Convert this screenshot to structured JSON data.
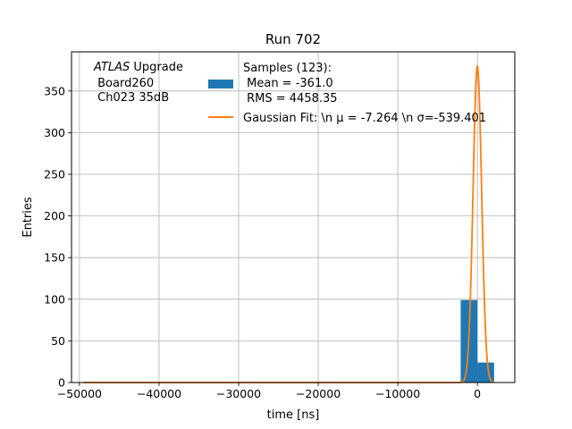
{
  "chart_data": {
    "type": "bar",
    "title": "Run 702",
    "xlabel": "time [ns]",
    "ylabel": "Entries",
    "xlim": [
      -51000,
      4700
    ],
    "ylim": [
      0,
      397
    ],
    "x_ticks": [
      -50000,
      -40000,
      -30000,
      -20000,
      -10000,
      0
    ],
    "x_tick_labels": [
      "−50000",
      "−40000",
      "−30000",
      "−20000",
      "−10000",
      "0"
    ],
    "y_ticks": [
      0,
      50,
      100,
      150,
      200,
      250,
      300,
      350
    ],
    "y_tick_labels": [
      "0",
      "50",
      "100",
      "150",
      "200",
      "250",
      "300",
      "350"
    ],
    "grid": true,
    "legend_position": "top-center",
    "annotation": {
      "italic": "ATLAS",
      "line1_rest": " Upgrade",
      "line2": " Board260",
      "line3": " Ch023 35dB"
    },
    "histogram": {
      "name_lines": [
        "Samples (123):",
        " Mean = -361.0",
        " RMS = 4458.35"
      ],
      "color": "#1f77b4",
      "bins": [
        {
          "x0": -49500,
          "x1": -47400,
          "count": 0
        },
        {
          "x0": -2100,
          "x1": 0,
          "count": 99
        },
        {
          "x0": 0,
          "x1": 2100,
          "count": 24
        }
      ]
    },
    "fit": {
      "name": "Gaussian Fit: \\n μ = -7.264 \\n σ=-539.401",
      "color": "#ff7f0e",
      "amplitude": 380,
      "mu": -7.264,
      "sigma": -539.401,
      "x_range": [
        -49500,
        2000
      ]
    }
  }
}
